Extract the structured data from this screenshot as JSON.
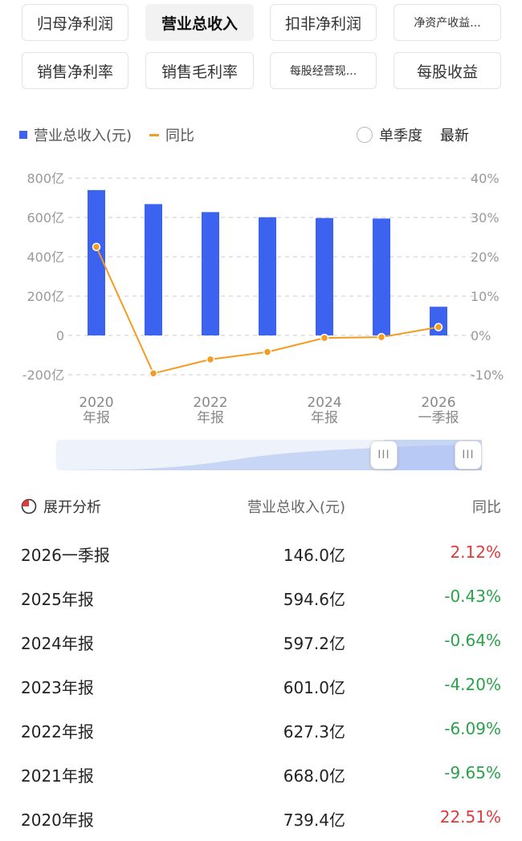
{
  "tabs": [
    {
      "label": "归母净利润",
      "active": false
    },
    {
      "label": "营业总收入",
      "active": true
    },
    {
      "label": "扣非净利润",
      "active": false
    },
    {
      "label": "净资产收益...",
      "active": false
    },
    {
      "label": "销售净利率",
      "active": false
    },
    {
      "label": "销售毛利率",
      "active": false
    },
    {
      "label": "每股经营现...",
      "active": false
    },
    {
      "label": "每股收益",
      "active": false
    }
  ],
  "legend": {
    "bar_label": "营业总收入(元)",
    "line_label": "同比"
  },
  "options": {
    "single_quarter": "单季度",
    "latest": "最新"
  },
  "colors": {
    "bar": "#3b63f0",
    "line": "#f39c22",
    "up": "#e03b3b",
    "down": "#2aa24a"
  },
  "chart_data": {
    "type": "bar",
    "categories": [
      "2020年报",
      "2021年报",
      "2022年报",
      "2023年报",
      "2024年报",
      "2025年报",
      "2026一季报"
    ],
    "series": [
      {
        "name": "营业总收入(元)",
        "type": "bar",
        "values": [
          739.4,
          668.0,
          627.3,
          601.0,
          597.2,
          594.6,
          146.0
        ],
        "axis": "left"
      },
      {
        "name": "同比",
        "type": "line",
        "values": [
          22.51,
          -9.65,
          -6.09,
          -4.2,
          -0.64,
          -0.43,
          2.12
        ],
        "axis": "right"
      }
    ],
    "x_tick_labels": [
      [
        "2020",
        "年报"
      ],
      [
        "2022",
        "年报"
      ],
      [
        "2024",
        "年报"
      ],
      [
        "2026",
        "一季报"
      ]
    ],
    "left_ticks": [
      "800亿",
      "600亿",
      "400亿",
      "200亿",
      "0",
      "-200亿"
    ],
    "right_ticks": [
      "40%",
      "30%",
      "20%",
      "10%",
      "0%",
      "-10%"
    ],
    "left_ylim": [
      -200,
      800
    ],
    "right_ylim": [
      -10,
      40
    ]
  },
  "table": {
    "header": {
      "analysis": "展开分析",
      "value": "营业总收入(元)",
      "yoy": "同比"
    },
    "rows": [
      {
        "period": "2026一季报",
        "value": "146.0亿",
        "yoy": "2.12%",
        "dir": "up"
      },
      {
        "period": "2025年报",
        "value": "594.6亿",
        "yoy": "-0.43%",
        "dir": "down"
      },
      {
        "period": "2024年报",
        "value": "597.2亿",
        "yoy": "-0.64%",
        "dir": "down"
      },
      {
        "period": "2023年报",
        "value": "601.0亿",
        "yoy": "-4.20%",
        "dir": "down"
      },
      {
        "period": "2022年报",
        "value": "627.3亿",
        "yoy": "-6.09%",
        "dir": "down"
      },
      {
        "period": "2021年报",
        "value": "668.0亿",
        "yoy": "-9.65%",
        "dir": "down"
      },
      {
        "period": "2020年报",
        "value": "739.4亿",
        "yoy": "22.51%",
        "dir": "up"
      }
    ]
  }
}
